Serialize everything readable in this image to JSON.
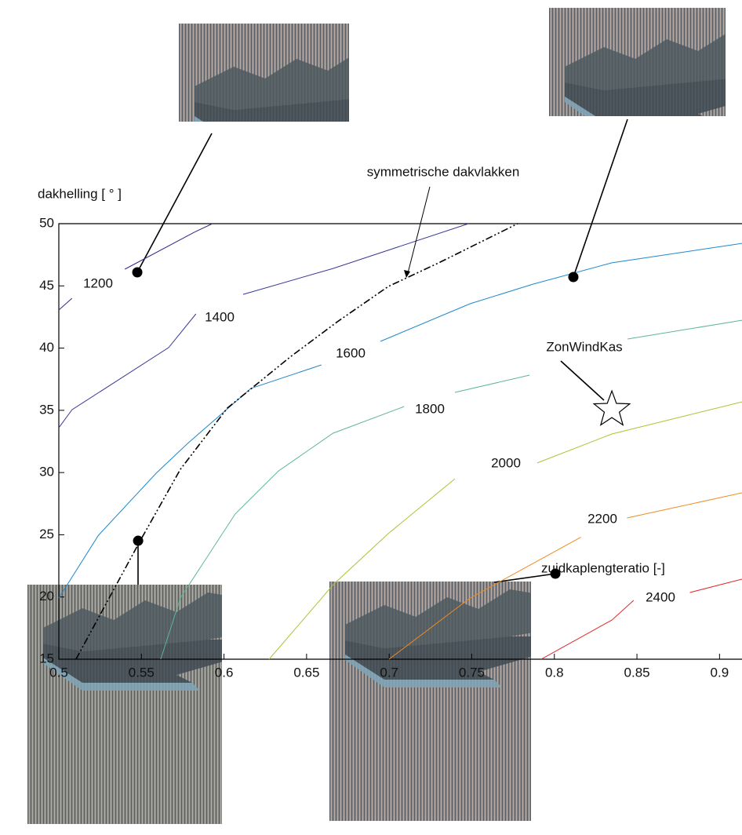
{
  "chart_data": {
    "type": "contour",
    "x_label": "zuidkaplengteratio [-]",
    "y_label": "dakhelling [ ° ]",
    "xlim": [
      0.5,
      0.9136
    ],
    "ylim": [
      15,
      50
    ],
    "xticks": [
      0.5,
      0.55,
      0.6,
      0.65,
      0.7,
      0.75,
      0.8,
      0.85,
      0.9
    ],
    "yticks": [
      15,
      20,
      25,
      30,
      35,
      40,
      45,
      50
    ],
    "series": [
      {
        "name": "1200",
        "color": "#2e2a86",
        "x": [
          0.5,
          0.508,
          null,
          0.54,
          0.582,
          0.593
        ],
        "y": [
          43.06,
          44.0,
          null,
          46.34,
          49.31,
          50
        ]
      },
      {
        "name": "1400",
        "color": "#3a3896",
        "x": [
          0.5,
          0.508,
          0.5665,
          0.583,
          null,
          0.6116,
          0.666,
          0.748
        ],
        "y": [
          33.6,
          35.05,
          40.04,
          42.75,
          null,
          44.32,
          46.4,
          50
        ]
      },
      {
        "name": "1600",
        "color": "#1e88cc",
        "x": [
          0.5,
          0.524,
          0.559,
          0.578,
          0.6163,
          0.659,
          null,
          0.6947,
          0.749,
          0.787,
          0.8348,
          0.9136
        ],
        "y": [
          19.92,
          24.96,
          29.95,
          32.34,
          36.76,
          38.65,
          null,
          40.54,
          43.57,
          45.14,
          46.85,
          48.42
        ]
      },
      {
        "name": "1800",
        "color": "#5db59a",
        "x": [
          0.5617,
          0.5736,
          0.6068,
          0.633,
          0.666,
          0.709,
          null,
          0.7398,
          0.785,
          null,
          0.8443,
          0.9136
        ],
        "y": [
          15,
          19.92,
          26.67,
          30.13,
          33.16,
          35.3,
          null,
          36.44,
          37.83,
          null,
          40.73,
          42.24
        ]
      },
      {
        "name": "2000",
        "color": "#a6c633",
        "x": [
          0.6273,
          0.6662,
          0.6994,
          0.7398,
          null,
          0.7896,
          0.8348,
          0.9136
        ],
        "y": [
          15,
          21.0,
          25.09,
          29.5,
          null,
          30.77,
          33.1,
          35.68
        ]
      },
      {
        "name": "2200",
        "color": "#ef8a22",
        "x": [
          0.6999,
          0.749,
          0.816,
          null,
          0.844,
          0.9136
        ],
        "y": [
          15,
          19.92,
          24.8,
          null,
          26.35,
          28.37
        ]
      },
      {
        "name": "2400",
        "color": "#e02828",
        "x": [
          0.792,
          0.8348,
          0.848,
          null,
          0.882,
          0.9136
        ],
        "y": [
          15,
          18.15,
          19.73,
          null,
          20.36,
          21.43
        ]
      }
    ],
    "symmetry_line": {
      "label": "symmetrische dakvlakken",
      "color": "#000000",
      "x": [
        0.5104,
        0.549,
        0.5736,
        0.602,
        0.64,
        0.6686,
        0.6994,
        0.73,
        0.7778
      ],
      "y": [
        15,
        24.46,
        30.26,
        35.18,
        39.28,
        42.12,
        44.95,
        46.85,
        50
      ]
    },
    "design_point": {
      "label": "ZonWindKas",
      "x": 0.8348,
      "y": 35.05
    },
    "sample_points": {
      "x": [
        0.5475,
        0.8115,
        0.548,
        0.8006
      ],
      "y": [
        46.09,
        45.71,
        24.52,
        21.87
      ]
    }
  }
}
